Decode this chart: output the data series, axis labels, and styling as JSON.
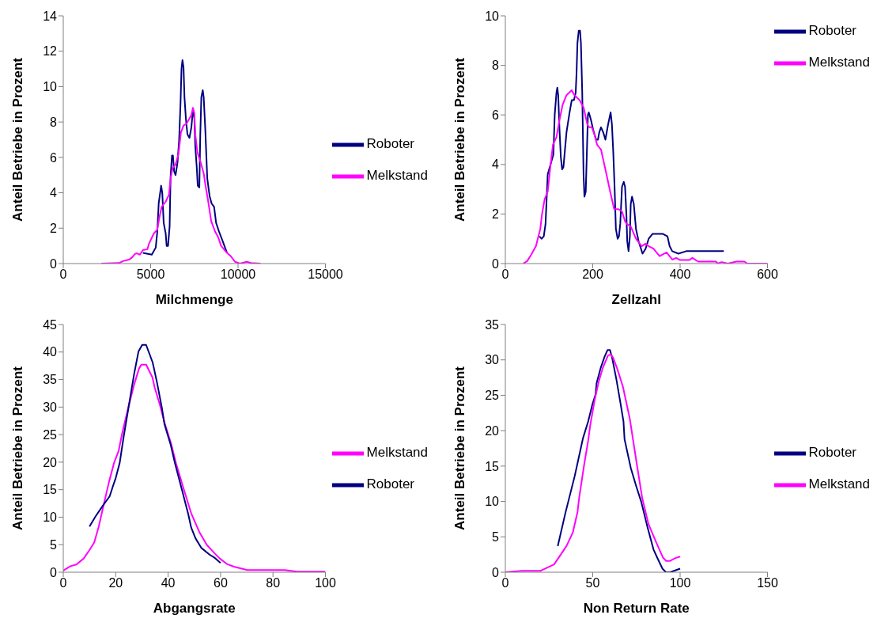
{
  "chart_data": [
    {
      "type": "line",
      "xlabel": "Milchmenge",
      "ylabel": "Anteil Betriebe in Prozent",
      "xlim": [
        0,
        15000
      ],
      "xticks": [
        0,
        5000,
        10000,
        15000
      ],
      "ylim": [
        0,
        14
      ],
      "yticks": [
        0,
        2,
        4,
        6,
        8,
        10,
        12,
        14
      ],
      "legend": "right",
      "series": [
        {
          "name": "Roboter",
          "color": "#000080",
          "x": [
            4555,
            5065,
            5290,
            5380,
            5460,
            5600,
            5665,
            5745,
            5860,
            5915,
            5995,
            6085,
            6140,
            6220,
            6275,
            6345,
            6425,
            6535,
            6630,
            6710,
            6765,
            6820,
            6880,
            6935,
            7015,
            7105,
            7220,
            7330,
            7420,
            7500,
            7555,
            7640,
            7695,
            7785,
            7840,
            7900,
            7980,
            8035,
            8125,
            8240,
            8375,
            8485,
            8630,
            8745,
            8915,
            9145,
            9370
          ],
          "values": [
            0.6,
            0.5,
            0.9,
            1.8,
            3.4,
            4.4,
            4.0,
            2.3,
            1.7,
            1.0,
            1.0,
            2.1,
            4.9,
            6.1,
            6.1,
            5.2,
            5.0,
            5.7,
            7.0,
            9.1,
            11.0,
            11.5,
            11.1,
            9.4,
            8.2,
            7.3,
            7.1,
            7.7,
            8.7,
            8.2,
            6.6,
            5.4,
            4.4,
            4.3,
            7.3,
            9.4,
            9.8,
            9.4,
            7.6,
            4.8,
            3.8,
            3.4,
            3.2,
            2.3,
            1.8,
            1.2,
            0.6
          ]
        },
        {
          "name": "Melkstand",
          "color": "#ff00ff",
          "x": [
            2175,
            3195,
            3420,
            3760,
            3930,
            4100,
            4215,
            4385,
            4555,
            4815,
            4895,
            5180,
            5370,
            5520,
            5630,
            5860,
            6050,
            6140,
            6255,
            6425,
            6595,
            6730,
            6880,
            7050,
            7220,
            7330,
            7420,
            7500,
            7555,
            7670,
            7865,
            8035,
            8125,
            8295,
            8465,
            8690,
            8860,
            9030,
            9370,
            9600,
            9825,
            10110,
            10500,
            10730,
            11290
          ],
          "values": [
            0,
            0.03,
            0.14,
            0.22,
            0.34,
            0.54,
            0.58,
            0.5,
            0.76,
            0.81,
            1.1,
            1.7,
            1.9,
            2.7,
            3.2,
            3.5,
            3.9,
            4.8,
            5.4,
            5.6,
            6.2,
            7.4,
            7.8,
            7.9,
            8.2,
            8.4,
            8.8,
            8.5,
            7.3,
            6.3,
            5.7,
            5.1,
            4.5,
            3.5,
            2.4,
            1.8,
            1.5,
            1.0,
            0.6,
            0.4,
            0.1,
            0,
            0.1,
            0.03,
            0
          ]
        }
      ]
    },
    {
      "type": "line",
      "xlabel": "Zellzahl",
      "ylabel": "Anteil Betriebe in Prozent",
      "xlim": [
        0,
        600
      ],
      "xticks": [
        0,
        200,
        400,
        600
      ],
      "ylim": [
        0,
        10
      ],
      "yticks": [
        0,
        2,
        4,
        6,
        8,
        10
      ],
      "legend": "top right",
      "series": [
        {
          "name": "Roboter",
          "color": "#000080",
          "x": [
            78,
            83,
            88,
            92,
            97,
            105,
            110,
            113,
            117,
            119,
            121,
            124,
            127,
            130,
            133,
            136,
            140,
            147,
            152,
            157,
            161,
            163,
            165,
            168,
            171,
            173,
            176,
            179,
            181,
            184,
            186,
            189,
            191,
            196,
            201,
            208,
            212,
            215,
            219,
            224,
            229,
            235,
            241,
            244,
            247,
            250,
            253,
            257,
            260,
            263,
            267,
            271,
            274,
            277,
            279,
            282,
            285,
            287,
            290,
            294,
            299,
            305,
            314,
            321,
            328,
            337,
            360,
            371,
            376,
            382,
            396,
            414,
            500
          ],
          "values": [
            1.1,
            1.0,
            1.1,
            1.6,
            3.6,
            4.1,
            4.4,
            6.0,
            6.9,
            7.1,
            6.8,
            5.4,
            4.3,
            3.8,
            3.9,
            4.5,
            5.3,
            6.1,
            6.6,
            6.6,
            6.9,
            7.7,
            8.9,
            9.4,
            9.4,
            8.9,
            6.9,
            3.6,
            2.7,
            2.9,
            4.1,
            6.0,
            6.1,
            5.8,
            5.4,
            5.0,
            5.0,
            5.3,
            5.5,
            5.3,
            5.0,
            5.6,
            6.1,
            5.6,
            4.5,
            3.1,
            1.4,
            1.0,
            1.1,
            1.6,
            3.1,
            3.3,
            3.1,
            2.0,
            0.9,
            0.5,
            1.1,
            2.4,
            2.7,
            2.4,
            1.4,
            0.9,
            0.4,
            0.6,
            1.0,
            1.2,
            1.2,
            1.1,
            0.7,
            0.5,
            0.4,
            0.5,
            0.5
          ]
        },
        {
          "name": "Melkstand",
          "color": "#ff00ff",
          "x": [
            41,
            50,
            59,
            70,
            80,
            84,
            90,
            97,
            103,
            109,
            117,
            124,
            131,
            140,
            152,
            158,
            170,
            179,
            188,
            192,
            198,
            204,
            210,
            219,
            229,
            240,
            249,
            258,
            267,
            274,
            278,
            287,
            299,
            312,
            321,
            328,
            339,
            353,
            369,
            382,
            391,
            400,
            421,
            428,
            441,
            482,
            486,
            495,
            509,
            529,
            547,
            554,
            600
          ],
          "values": [
            0,
            0.1,
            0.35,
            0.7,
            1.4,
            2.0,
            2.6,
            2.9,
            3.9,
            4.8,
            5.1,
            5.8,
            6.4,
            6.8,
            7.0,
            6.8,
            6.6,
            6.3,
            5.6,
            5.5,
            5.5,
            5.2,
            4.8,
            4.6,
            3.8,
            2.9,
            2.2,
            2.2,
            2.1,
            1.7,
            1.6,
            1.5,
            1.0,
            0.7,
            0.8,
            0.7,
            0.6,
            0.3,
            0.45,
            0.16,
            0.23,
            0.14,
            0.14,
            0.23,
            0.08,
            0.08,
            0,
            0.06,
            0,
            0.08,
            0.08,
            0,
            0
          ]
        }
      ]
    },
    {
      "type": "line",
      "xlabel": "Abgangsrate",
      "ylabel": "Anteil Betriebe in Prozent",
      "xlim": [
        0,
        100
      ],
      "xticks": [
        0,
        20,
        40,
        60,
        80,
        100
      ],
      "ylim": [
        0,
        45
      ],
      "yticks": [
        0,
        5,
        10,
        15,
        20,
        25,
        30,
        35,
        40,
        45
      ],
      "legend": "right",
      "series": [
        {
          "name": "Melkstand",
          "color": "#ff00ff",
          "x": [
            0,
            2.7,
            5,
            7.8,
            10.1,
            11.8,
            13.6,
            15.1,
            17.4,
            19.4,
            21.1,
            22.5,
            24.8,
            27.1,
            28.9,
            29.8,
            31.6,
            34,
            34.9,
            36.8,
            38.6,
            41.1,
            43,
            45.7,
            48.8,
            51.9,
            54.7,
            57.8,
            59.7,
            62.4,
            65.1,
            70.2,
            84.5,
            89.1,
            100
          ],
          "values": [
            0.3,
            1.1,
            1.4,
            2.5,
            4.1,
            5.4,
            8.4,
            11.6,
            16.3,
            19.9,
            22.0,
            25.3,
            29.9,
            34.2,
            37.0,
            37.7,
            37.7,
            35.4,
            33.5,
            30.5,
            27.2,
            23.4,
            19.8,
            15.5,
            10.7,
            7.3,
            5.0,
            3.4,
            2.5,
            1.5,
            1.0,
            0.4,
            0.4,
            0.1,
            0.1
          ]
        },
        {
          "name": "Roboter",
          "color": "#000080",
          "x": [
            10,
            12.4,
            15.1,
            17.7,
            19,
            20,
            21.5,
            23.1,
            25.2,
            27.1,
            28.7,
            30.1,
            31.6,
            34.1,
            35.7,
            37.6,
            38.6,
            41,
            42.6,
            45.3,
            47.7,
            48.8,
            50.4,
            52.7,
            55.8,
            57.8,
            60
          ],
          "values": [
            8.3,
            10.2,
            12.1,
            13.8,
            15.7,
            17.1,
            19.8,
            24.8,
            30.8,
            36.2,
            40.1,
            41.3,
            41.3,
            38.1,
            34.6,
            29.9,
            26.9,
            23.1,
            19.8,
            14.9,
            10.5,
            8.1,
            6.2,
            4.4,
            3.2,
            2.6,
            1.7
          ]
        }
      ]
    },
    {
      "type": "line",
      "xlabel": "Non Return Rate",
      "ylabel": "Anteil Betriebe in Prozent",
      "xlim": [
        0,
        150
      ],
      "xticks": [
        0,
        50,
        100,
        150
      ],
      "ylim": [
        0,
        35
      ],
      "yticks": [
        0,
        5,
        10,
        15,
        20,
        25,
        30,
        35
      ],
      "legend": "right",
      "series": [
        {
          "name": "Roboter",
          "color": "#000080",
          "x": [
            30,
            34.4,
            39.7,
            44.5,
            47.4,
            49.8,
            51.6,
            52.2,
            54.6,
            56.7,
            58.5,
            59.9,
            61.1,
            63.5,
            65.8,
            67.6,
            68.2,
            71.8,
            74.7,
            77.7,
            81.3,
            84.8,
            87.2,
            89.9,
            91.9,
            94.3,
            100
          ],
          "values": [
            3.7,
            8.4,
            13.6,
            19.0,
            21.3,
            23.7,
            25.1,
            26.7,
            28.9,
            30.4,
            31.4,
            31.4,
            30.3,
            27.3,
            24.0,
            21.3,
            18.8,
            14.7,
            12.3,
            10.0,
            6.4,
            3.2,
            1.9,
            0.5,
            0,
            0,
            0.5
          ]
        },
        {
          "name": "Melkstand",
          "color": "#ff00ff",
          "x": [
            0,
            9.5,
            20.2,
            27.9,
            35,
            38.6,
            41.3,
            42.3,
            45.1,
            47.4,
            48.6,
            51,
            53.4,
            55.8,
            58.7,
            60.3,
            61.7,
            64.1,
            67.3,
            71.2,
            74.7,
            78.3,
            81.9,
            86,
            90.1,
            92,
            94.3,
            97.3,
            100
          ],
          "values": [
            0,
            0.2,
            0.2,
            1.1,
            3.7,
            5.6,
            8.5,
            10.6,
            15.2,
            18.6,
            20.8,
            24.2,
            26.9,
            28.9,
            30.6,
            30.8,
            30.3,
            28.7,
            26.2,
            21.7,
            16.1,
            10.5,
            6.8,
            4.4,
            2.1,
            1.6,
            1.6,
            2.0,
            2.2
          ]
        }
      ]
    }
  ]
}
